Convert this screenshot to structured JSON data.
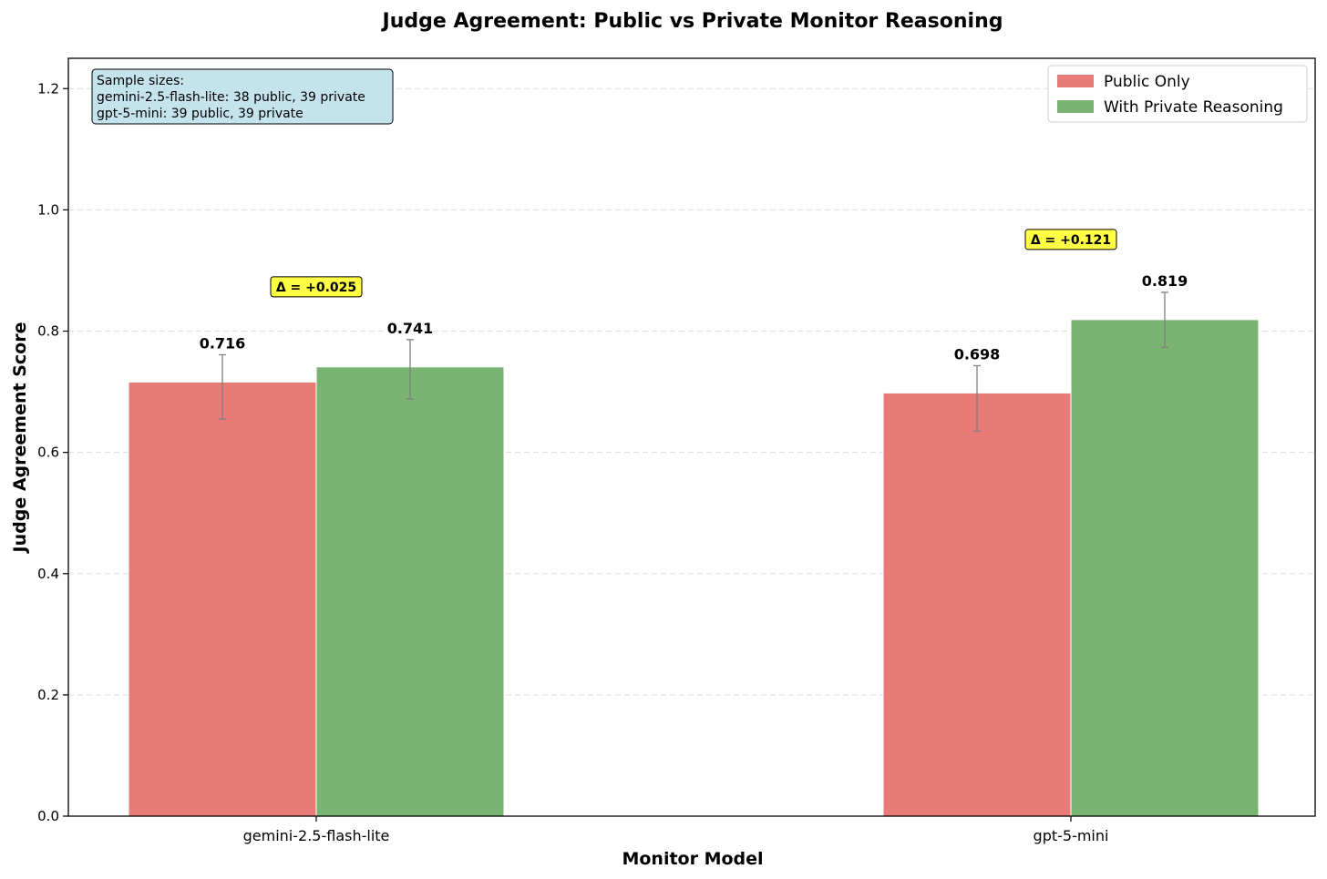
{
  "chart_data": {
    "type": "bar",
    "title": "Judge Agreement: Public vs Private Monitor Reasoning",
    "xlabel": "Monitor Model",
    "ylabel": "Judge Agreement Score",
    "categories": [
      "gemini-2.5-flash-lite",
      "gpt-5-mini"
    ],
    "series": [
      {
        "name": "Public Only",
        "color": "#e87a78",
        "values": [
          0.716,
          0.698
        ],
        "value_labels": [
          "0.716",
          "0.698"
        ],
        "error_low": [
          0.655,
          0.635
        ],
        "error_high": [
          0.761,
          0.743
        ]
      },
      {
        "name": "With Private Reasoning",
        "color": "#7ab472",
        "values": [
          0.741,
          0.819
        ],
        "value_labels": [
          "0.741",
          "0.819"
        ],
        "error_low": [
          0.688,
          0.773
        ],
        "error_high": [
          0.786,
          0.864
        ]
      }
    ],
    "delta_labels": [
      "Δ = +0.025",
      "Δ = +0.121"
    ],
    "delta_box_color": "#ffff44",
    "ylim": [
      0,
      1.25
    ],
    "yticks": [
      0.0,
      0.2,
      0.4,
      0.6,
      0.8,
      1.0,
      1.2
    ],
    "ytick_labels": [
      "0.0",
      "0.2",
      "0.4",
      "0.6",
      "0.8",
      "1.0",
      "1.2"
    ],
    "grid": "y-dashed",
    "legend_position": "top-right",
    "annotation": {
      "lines": [
        "Sample sizes:",
        "gemini-2.5-flash-lite: 38 public, 39 private",
        "gpt-5-mini: 39 public, 39 private"
      ],
      "position": "top-left",
      "background": "#c5e3ec"
    }
  }
}
